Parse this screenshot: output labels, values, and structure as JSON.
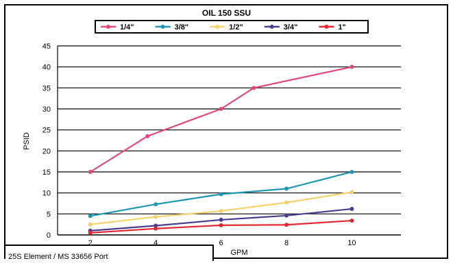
{
  "chart_data": {
    "type": "line",
    "title": "OIL 150 SSU",
    "xlabel": "GPM",
    "ylabel": "PSID",
    "xlim": [
      1,
      11.5
    ],
    "ylim": [
      0,
      45
    ],
    "xticks": [
      "2",
      "4",
      "6",
      "8",
      "10"
    ],
    "yticks": [
      "0",
      "5",
      "10",
      "15",
      "20",
      "25",
      "30",
      "35",
      "40",
      "45"
    ],
    "grid": "horizontal",
    "legend_position": "top",
    "series": [
      {
        "name": "1/4\"",
        "color": "#e2457f",
        "x": [
          2,
          3.75,
          6,
          7,
          10
        ],
        "y": [
          15,
          23.5,
          30,
          35,
          40
        ]
      },
      {
        "name": "3/8\"",
        "color": "#1b97b1",
        "x": [
          2,
          4,
          6,
          8,
          10
        ],
        "y": [
          4.5,
          7.3,
          9.7,
          11,
          15
        ]
      },
      {
        "name": "1/2\"",
        "color": "#f2d36b",
        "x": [
          2,
          4,
          6,
          8,
          10
        ],
        "y": [
          2.5,
          4.3,
          5.7,
          7.7,
          10.2
        ]
      },
      {
        "name": "3/4\"",
        "color": "#4d3b8f",
        "x": [
          2,
          4,
          6,
          8,
          10
        ],
        "y": [
          1,
          2.2,
          3.6,
          4.6,
          6.2
        ]
      },
      {
        "name": "1\"",
        "color": "#e3262f",
        "x": [
          2,
          4,
          6,
          8,
          10
        ],
        "y": [
          0.5,
          1.5,
          2.3,
          2.4,
          3.4
        ]
      }
    ]
  },
  "footer": {
    "note": "25S Element / MS 33656 Port"
  }
}
